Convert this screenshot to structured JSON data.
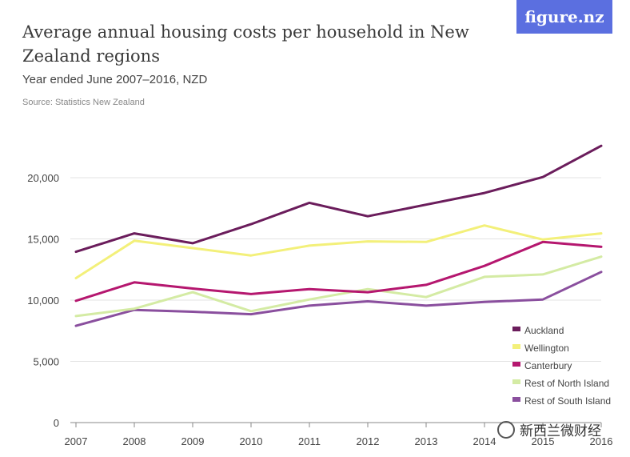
{
  "header": {
    "title": "Average annual housing costs per household in New Zealand regions",
    "subtitle": "Year ended June 2007–2016, NZD",
    "source": "Source: Statistics New Zealand",
    "logo": "figure.nz",
    "logo_color": "#5b6fe0"
  },
  "watermark": {
    "text": "新西兰微财经",
    "icon": "wechat-icon"
  },
  "chart_data": {
    "type": "line",
    "title": "Average annual housing costs per household in New Zealand regions",
    "subtitle": "Year ended June 2007–2016, NZD",
    "x": [
      "2007",
      "2008",
      "2009",
      "2010",
      "2011",
      "2012",
      "2013",
      "2014",
      "2015",
      "2016"
    ],
    "ylim": [
      0,
      25000
    ],
    "yticks": [
      0,
      5000,
      10000,
      15000,
      20000
    ],
    "ytick_labels": [
      "0",
      "5,000",
      "10,000",
      "15,000",
      "20,000"
    ],
    "xlabel": "",
    "ylabel": "",
    "grid": true,
    "legend_position": "bottom-right",
    "series": [
      {
        "name": "Auckland",
        "color": "#6b1d5c",
        "values": [
          13950,
          15450,
          14650,
          16200,
          17950,
          16850,
          17800,
          18750,
          20050,
          22600
        ]
      },
      {
        "name": "Wellington",
        "color": "#f3f07a",
        "values": [
          11800,
          14850,
          14250,
          13650,
          14450,
          14800,
          14750,
          16100,
          14950,
          15450
        ]
      },
      {
        "name": "Canterbury",
        "color": "#b5176f",
        "values": [
          9950,
          11450,
          10950,
          10500,
          10900,
          10650,
          11250,
          12800,
          14750,
          14350
        ]
      },
      {
        "name": "Rest of North Island",
        "color": "#d4eba4",
        "values": [
          8700,
          9300,
          10650,
          9100,
          10050,
          10900,
          10250,
          11900,
          12100,
          13550
        ]
      },
      {
        "name": "Rest of South Island",
        "color": "#8a4f9e",
        "values": [
          7900,
          9200,
          9050,
          8850,
          9550,
          9900,
          9550,
          9850,
          10050,
          12300
        ]
      }
    ]
  }
}
